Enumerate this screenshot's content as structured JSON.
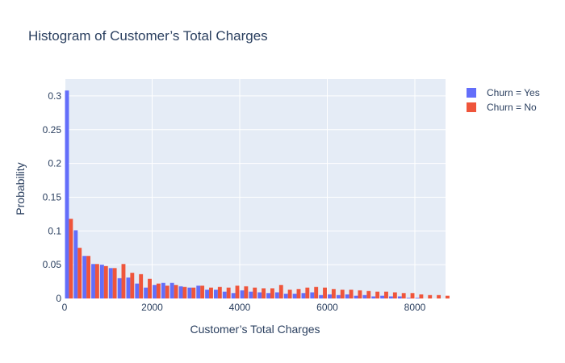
{
  "chart_data": {
    "type": "bar",
    "title": "Histogram of Customer’s Total Charges",
    "xlabel": "Customer’s Total Charges",
    "ylabel": "Probability",
    "xlim": [
      0,
      8700
    ],
    "ylim": [
      0,
      0.325
    ],
    "x_ticks": [
      0,
      2000,
      4000,
      6000,
      8000
    ],
    "x_tick_labels": [
      "0",
      "2000",
      "4000",
      "6000",
      "8000"
    ],
    "y_ticks": [
      0,
      0.05,
      0.1,
      0.15,
      0.2,
      0.25,
      0.3
    ],
    "y_tick_labels": [
      "0",
      "0.05",
      "0.1",
      "0.15",
      "0.2",
      "0.25",
      "0.3"
    ],
    "bin_width": 200,
    "bin_starts": [
      0,
      200,
      400,
      600,
      800,
      1000,
      1200,
      1400,
      1600,
      1800,
      2000,
      2200,
      2400,
      2600,
      2800,
      3000,
      3200,
      3400,
      3600,
      3800,
      4000,
      4200,
      4400,
      4600,
      4800,
      5000,
      5200,
      5400,
      5600,
      5800,
      6000,
      6200,
      6400,
      6600,
      6800,
      7000,
      7200,
      7400,
      7600,
      7800,
      8000,
      8200,
      8400,
      8600
    ],
    "grid": true,
    "legend_position": "top-right",
    "series": [
      {
        "name": "Churn = Yes",
        "color": "#636efa",
        "values": [
          0.308,
          0.101,
          0.063,
          0.051,
          0.05,
          0.045,
          0.03,
          0.031,
          0.022,
          0.016,
          0.02,
          0.023,
          0.023,
          0.018,
          0.016,
          0.019,
          0.013,
          0.013,
          0.01,
          0.008,
          0.012,
          0.01,
          0.009,
          0.008,
          0.009,
          0.007,
          0.007,
          0.008,
          0.009,
          0.005,
          0.006,
          0.005,
          0.006,
          0.004,
          0.005,
          0.003,
          0.004,
          0.003,
          0.003,
          0.001,
          0.001,
          0,
          0,
          0
        ]
      },
      {
        "name": "Churn = No",
        "color": "#ef553b",
        "values": [
          0.118,
          0.075,
          0.063,
          0.051,
          0.048,
          0.045,
          0.051,
          0.038,
          0.036,
          0.029,
          0.022,
          0.019,
          0.02,
          0.017,
          0.016,
          0.019,
          0.016,
          0.017,
          0.016,
          0.019,
          0.018,
          0.016,
          0.015,
          0.015,
          0.02,
          0.013,
          0.014,
          0.016,
          0.017,
          0.016,
          0.014,
          0.013,
          0.013,
          0.012,
          0.011,
          0.01,
          0.01,
          0.009,
          0.008,
          0.008,
          0.006,
          0.005,
          0.005,
          0.004
        ]
      }
    ]
  }
}
